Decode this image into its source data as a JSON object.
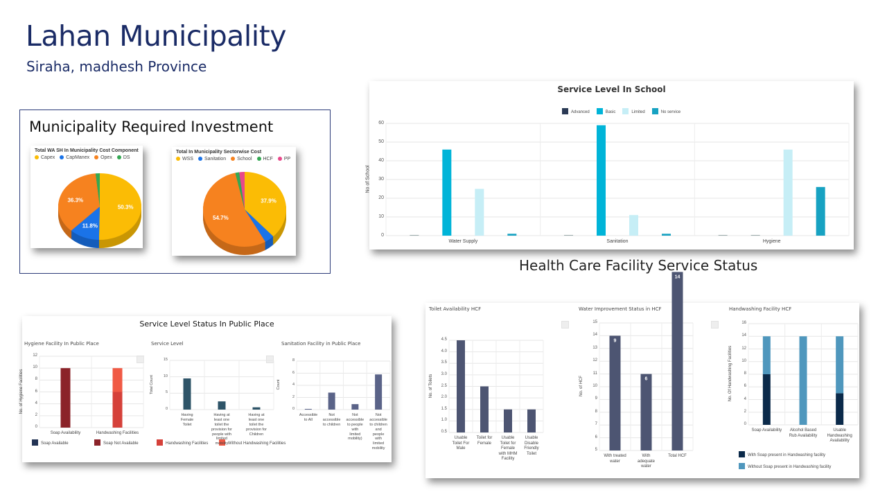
{
  "header": {
    "title": "Lahan Municipality",
    "subtitle": "Siraha, madhesh Province"
  },
  "investment": {
    "title": "Municipality Required Investment"
  },
  "school_section": {
    "title": "Service Level In School"
  },
  "public_section": {
    "title": "Service Level Status In Public Place"
  },
  "hcf_section": {
    "title": "Health Care Facility Service Status"
  },
  "chart_data": [
    {
      "type": "pie",
      "title": "Total WA SH In Municipality Cost Component",
      "labels": [
        "Capex",
        "CapManex",
        "Opex",
        "DS"
      ],
      "values": [
        50.3,
        11.8,
        36.3,
        1.6
      ],
      "value_labels": [
        "50.3%",
        "11.8%",
        "36.3%",
        ""
      ],
      "colors": [
        "#fbbc05",
        "#1a73e8",
        "#f6821f",
        "#34a853"
      ],
      "legend": "top-left"
    },
    {
      "type": "pie",
      "title": "Total In Municipality Sectorwise Cost",
      "labels": [
        "WSS",
        "Sanitation",
        "School",
        "HCF",
        "PP"
      ],
      "values": [
        37.9,
        3.8,
        54.7,
        1.5,
        2.1
      ],
      "value_labels": [
        "37.9%",
        "",
        "54.7%",
        "",
        ""
      ],
      "colors": [
        "#fbbc05",
        "#1a73e8",
        "#f6821f",
        "#34a853",
        "#e8488a"
      ],
      "legend": "top-left"
    },
    {
      "type": "bar",
      "mode": "grouped",
      "title": "Service Level In School",
      "categories": [
        "Water Supply",
        "Sanitation",
        "Hygiene"
      ],
      "series": [
        {
          "name": "Advanced",
          "values": [
            0,
            0,
            0
          ],
          "color": "#2b3a55"
        },
        {
          "name": "Basic",
          "values": [
            46,
            59,
            0
          ],
          "color": "#00b4d8"
        },
        {
          "name": "Limited",
          "values": [
            25,
            11,
            46
          ],
          "color": "#c6eef6"
        },
        {
          "name": "No service",
          "values": [
            1,
            1,
            26
          ],
          "color": "#17a2c2"
        }
      ],
      "xlabel": "",
      "ylabel": "No of School",
      "ylim": [
        0,
        60
      ],
      "yticks": [
        "0",
        "10",
        "20",
        "30",
        "40",
        "50",
        "60"
      ],
      "legend": "top"
    },
    {
      "type": "bar",
      "mode": "stacked",
      "title": "Hygiene Facility In Public Place",
      "categories": [
        "Soap Availability",
        "Handwashing Facilities"
      ],
      "series": [
        {
          "name": "Soap Available",
          "values": [
            0,
            0
          ],
          "color": "#233354"
        },
        {
          "name": "Soap Not Available",
          "values": [
            10,
            0
          ],
          "color": "#8b2329"
        },
        {
          "name": "Handwashing Facilities",
          "values": [
            0,
            6
          ],
          "color": "#d5413a"
        },
        {
          "name": "Without Handwashing Facilities",
          "values": [
            0,
            4
          ],
          "color": "#f05a45"
        }
      ],
      "xlabel": "",
      "ylabel": "No. of Hygiene Facilities",
      "ylim": [
        0,
        12
      ],
      "yticks": [
        "0",
        "2",
        "4",
        "6",
        "8",
        "10",
        "12"
      ],
      "legend": "bottom"
    },
    {
      "type": "bar",
      "mode": "single",
      "title": "Service Level",
      "categories": [
        "Having Female Toilet",
        "Having at least one toilet the provision for people with limited mobility",
        "Having at least one toilet the provision for Children"
      ],
      "series": [
        {
          "name": "Total Count",
          "values": [
            9.5,
            2.5,
            0.7
          ],
          "color": "#2e5468"
        }
      ],
      "xlabel": "",
      "ylabel": "Total Count",
      "ylim": [
        0,
        15
      ],
      "yticks": [
        "0",
        "5",
        "10",
        "15"
      ],
      "legend": "none"
    },
    {
      "type": "bar",
      "mode": "single",
      "title": "Sanitation Facility in Public Place",
      "categories": [
        "Accessible to All",
        "Not accessible to children",
        "Not accessible to people with limited mobility)",
        "Not accessible to children and people with limited mobility"
      ],
      "series": [
        {
          "name": "Count",
          "values": [
            0,
            2.8,
            0.9,
            5.8
          ],
          "color": "#5a6388"
        }
      ],
      "xlabel": "",
      "ylabel": "Count",
      "ylim": [
        0,
        8
      ],
      "yticks": [
        "0",
        "2",
        "4",
        "6",
        "8"
      ],
      "legend": "none"
    },
    {
      "type": "bar",
      "mode": "single",
      "title": "Toilet Availability HCF",
      "categories": [
        "Usable Toilet For Male",
        "Toilet for Female",
        "Usable Toilet for Female with MHM Facility",
        "Usable Disable Friendly Toilet"
      ],
      "series": [
        {
          "name": "No. of Toilets",
          "values": [
            4,
            2,
            1,
            1
          ],
          "color": "#4d5572"
        }
      ],
      "xlabel": "",
      "ylabel": "No. of Toilets",
      "ylim": [
        0.5,
        4.5
      ],
      "yticks": [
        "0.5",
        "1.0",
        "1.5",
        "2.0",
        "2.5",
        "3.0",
        "3.5",
        "4.0",
        "4.5"
      ],
      "legend": "none"
    },
    {
      "type": "bar",
      "mode": "single",
      "title": "Water Improvement Status in HCF",
      "categories": [
        "With treated water",
        "With adequate water",
        "Total HCF"
      ],
      "series": [
        {
          "name": "No. of HCF",
          "values": [
            9,
            6,
            14
          ],
          "color": "#4d5572"
        }
      ],
      "data_labels": [
        "9",
        "6",
        "14"
      ],
      "xlabel": "",
      "ylabel": "No. of HCF",
      "ylim": [
        5,
        15
      ],
      "yticks": [
        "5",
        "6",
        "7",
        "8",
        "9",
        "10",
        "11",
        "12",
        "13",
        "14",
        "15"
      ],
      "legend": "none"
    },
    {
      "type": "bar",
      "mode": "stacked",
      "title": "Handwashing Facility HCF",
      "categories": [
        "Soap Availability",
        "Alcohol Based Rub Availability",
        "Usable Handwashing Availability"
      ],
      "series": [
        {
          "name": "With Soap present in Handwashing facility",
          "values": [
            8,
            0,
            5
          ],
          "color": "#0b2a4a"
        },
        {
          "name": "Without Soap present in Handwashing facility",
          "values": [
            6,
            14,
            9
          ],
          "color": "#4f97bd"
        }
      ],
      "xlabel": "",
      "ylabel": "No. Of Handwashing Facilities",
      "ylim": [
        0,
        16
      ],
      "yticks": [
        "0",
        "2",
        "4",
        "6",
        "8",
        "10",
        "12",
        "14",
        "16"
      ],
      "legend": "bottom"
    }
  ]
}
